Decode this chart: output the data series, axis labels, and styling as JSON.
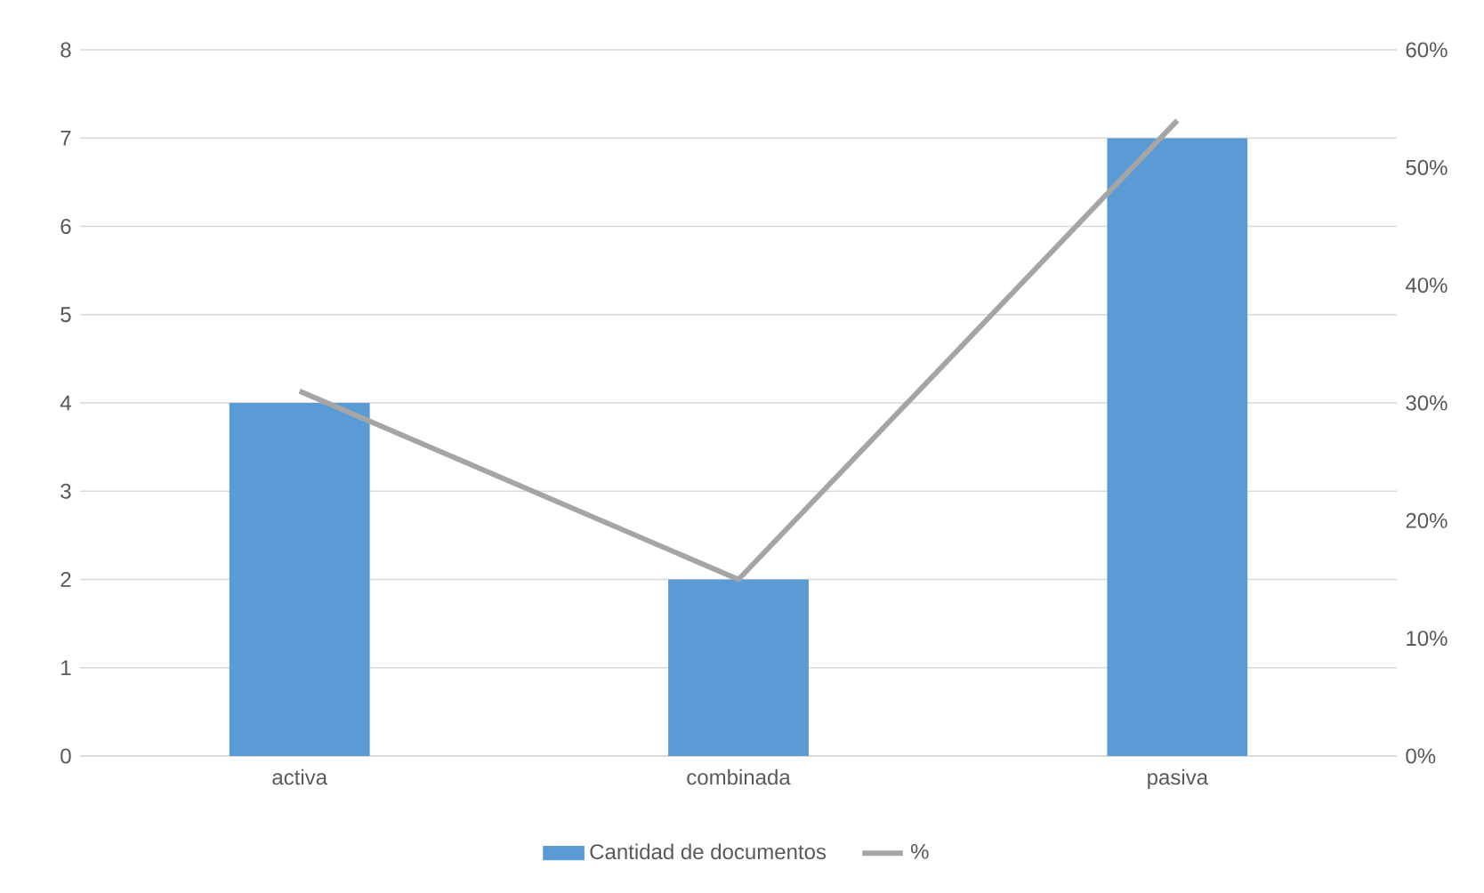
{
  "chart_data": {
    "type": "bar",
    "categories": [
      "activa",
      "combinada",
      "pasiva"
    ],
    "series": [
      {
        "name": "Cantidad de documentos",
        "color": "#5b9bd5",
        "values": [
          4,
          2,
          7
        ]
      },
      {
        "name": "%",
        "type": "line",
        "axis": "y2",
        "color": "#a5a5a5",
        "values": [
          31,
          15,
          54
        ]
      }
    ],
    "ylim": [
      0,
      8
    ],
    "yticks": [
      0,
      1,
      2,
      3,
      4,
      5,
      6,
      7,
      8
    ],
    "y2lim": [
      0,
      60
    ],
    "y2ticks": [
      {
        "value": 0,
        "label": "0%"
      },
      {
        "value": 10,
        "label": "10%"
      },
      {
        "value": 20,
        "label": "20%"
      },
      {
        "value": 30,
        "label": "30%"
      },
      {
        "value": 40,
        "label": "40%"
      },
      {
        "value": 50,
        "label": "50%"
      },
      {
        "value": 60,
        "label": "60%"
      }
    ],
    "grid": "y",
    "legend": "bottom",
    "marker": "none"
  }
}
